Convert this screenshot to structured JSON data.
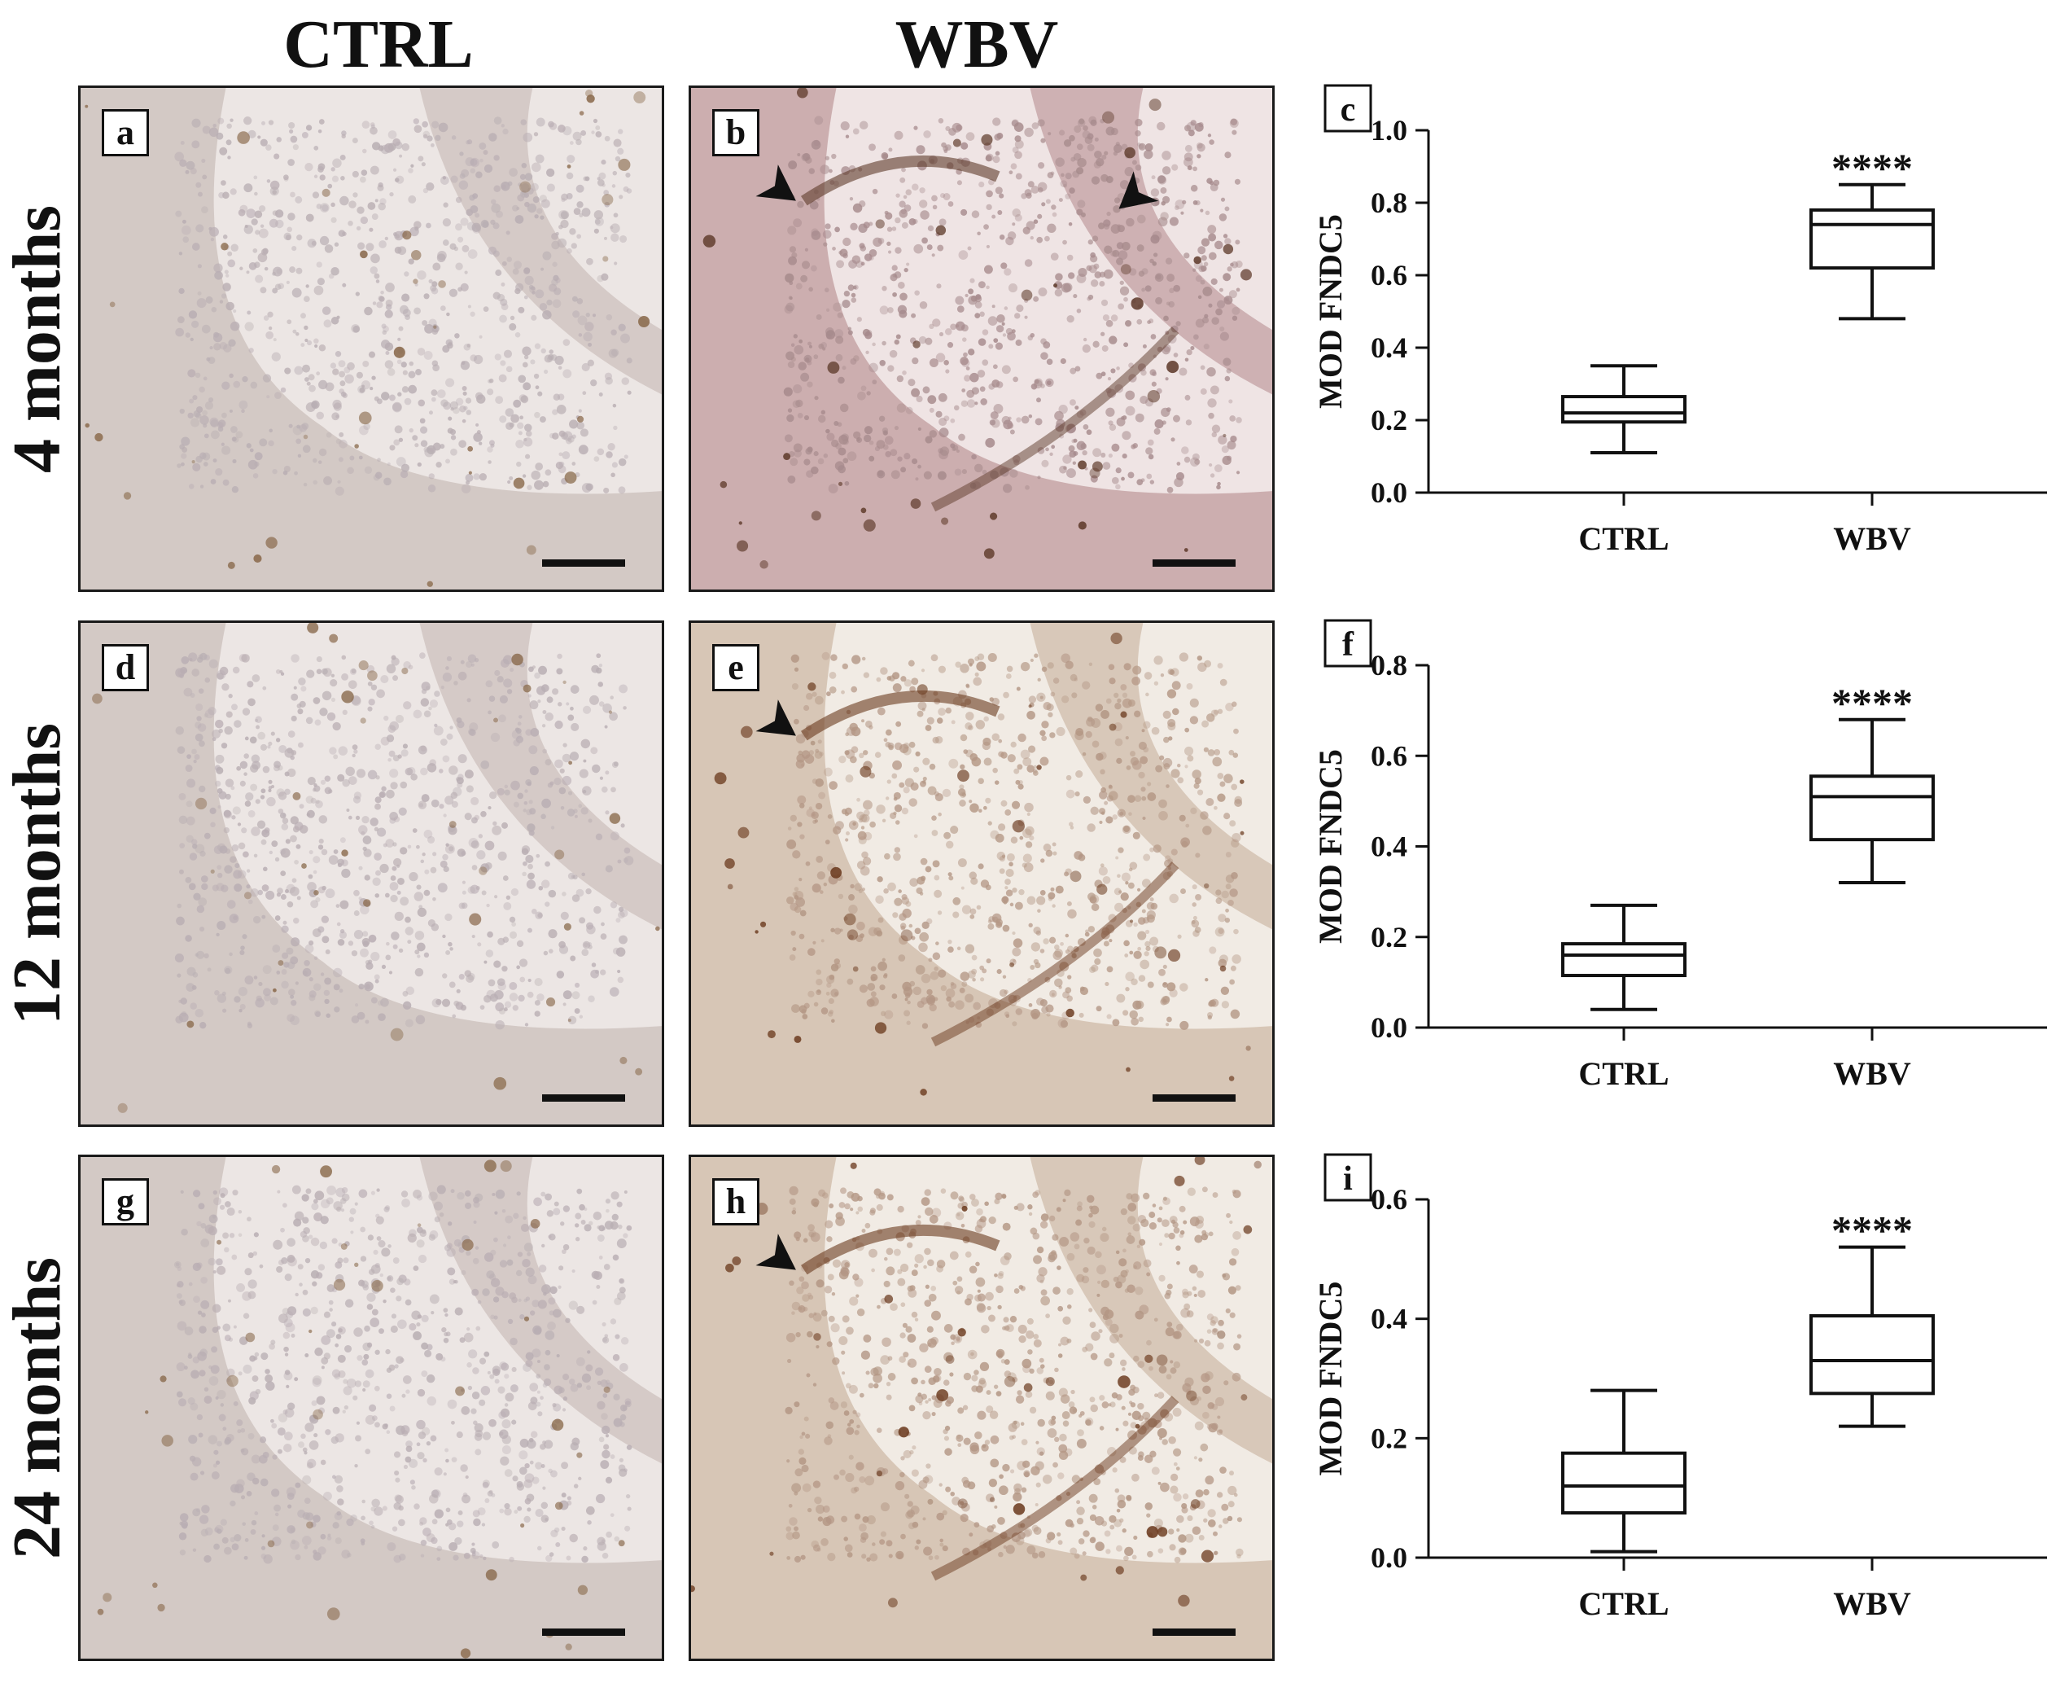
{
  "columns": [
    "CTRL",
    "WBV"
  ],
  "rows": [
    "4 months",
    "12 months",
    "24 months"
  ],
  "micrographs": [
    {
      "letter": "a",
      "row": 0,
      "col": 0,
      "arrows": 0,
      "stain": "light"
    },
    {
      "letter": "b",
      "row": 0,
      "col": 1,
      "arrows": 2,
      "stain": "pink"
    },
    {
      "letter": "d",
      "row": 1,
      "col": 0,
      "arrows": 0,
      "stain": "light"
    },
    {
      "letter": "e",
      "row": 1,
      "col": 1,
      "arrows": 1,
      "stain": "brown"
    },
    {
      "letter": "g",
      "row": 2,
      "col": 0,
      "arrows": 0,
      "stain": "light"
    },
    {
      "letter": "h",
      "row": 2,
      "col": 1,
      "arrows": 1,
      "stain": "brown"
    }
  ],
  "colors": {
    "ink": "#111111",
    "light_tissue": "#d8ccc6",
    "pink_tissue": "#c9a6a8",
    "brown_tissue": "#b78f6d",
    "stain_dark": "#6b3a1e"
  },
  "chart_data": [
    {
      "panel": "c",
      "type": "boxplot",
      "ylabel": "MOD FNDC5",
      "categories": [
        "CTRL",
        "WBV"
      ],
      "ylim": [
        0,
        1.0
      ],
      "yticks": [
        "0.0",
        "0.2",
        "0.4",
        "0.6",
        "0.8",
        "1.0"
      ],
      "series": [
        {
          "category": "CTRL",
          "min": 0.11,
          "q1": 0.195,
          "median": 0.22,
          "q3": 0.265,
          "max": 0.35
        },
        {
          "category": "WBV",
          "min": 0.48,
          "q1": 0.62,
          "median": 0.74,
          "q3": 0.78,
          "max": 0.85,
          "annotation": "****"
        }
      ]
    },
    {
      "panel": "f",
      "type": "boxplot",
      "ylabel": "MOD FNDC5",
      "categories": [
        "CTRL",
        "WBV"
      ],
      "ylim": [
        0,
        0.8
      ],
      "yticks": [
        "0.0",
        "0.2",
        "0.4",
        "0.6",
        "0.8"
      ],
      "series": [
        {
          "category": "CTRL",
          "min": 0.04,
          "q1": 0.115,
          "median": 0.16,
          "q3": 0.185,
          "max": 0.27
        },
        {
          "category": "WBV",
          "min": 0.32,
          "q1": 0.415,
          "median": 0.51,
          "q3": 0.555,
          "max": 0.68,
          "annotation": "****"
        }
      ]
    },
    {
      "panel": "i",
      "type": "boxplot",
      "ylabel": "MOD FNDC5",
      "categories": [
        "CTRL",
        "WBV"
      ],
      "ylim": [
        0,
        0.6
      ],
      "yticks": [
        "0.0",
        "0.2",
        "0.4",
        "0.6"
      ],
      "series": [
        {
          "category": "CTRL",
          "min": 0.01,
          "q1": 0.075,
          "median": 0.12,
          "q3": 0.175,
          "max": 0.28
        },
        {
          "category": "WBV",
          "min": 0.22,
          "q1": 0.275,
          "median": 0.33,
          "q3": 0.405,
          "max": 0.52,
          "annotation": "****"
        }
      ]
    }
  ]
}
